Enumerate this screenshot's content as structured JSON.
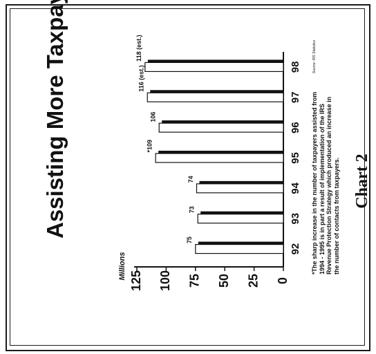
{
  "chart_data": {
    "type": "bar",
    "title": "Assisting More Taxpayers",
    "y_unit": "Millions",
    "categories": [
      "92",
      "93",
      "94",
      "95",
      "96",
      "97",
      "98"
    ],
    "values": [
      75,
      73,
      74,
      109,
      106,
      116,
      118
    ],
    "data_labels": [
      "75",
      "73",
      "74",
      "*109",
      "106",
      "116 (est.)",
      "118 (est.)"
    ],
    "y_ticks": [
      "0",
      "25",
      "50",
      "75",
      "100",
      "125"
    ],
    "ylim": [
      0,
      125
    ],
    "orientation": "rotated 90° counter-clockwise",
    "grid": false,
    "colors": {
      "bar_face": "#ffffff",
      "bar_shadow": "#111111",
      "ink": "#111111"
    }
  },
  "footnote": "*The sharp increase in the number of taxpayers assisted from 1994 - 1995 is in part a result of implementation of the IRS Revenue Protection Strategy which produced an increase in the number of contacts from taxpayers.",
  "source_note": "Source: IRS Statistics",
  "chart_label": "Chart 2"
}
